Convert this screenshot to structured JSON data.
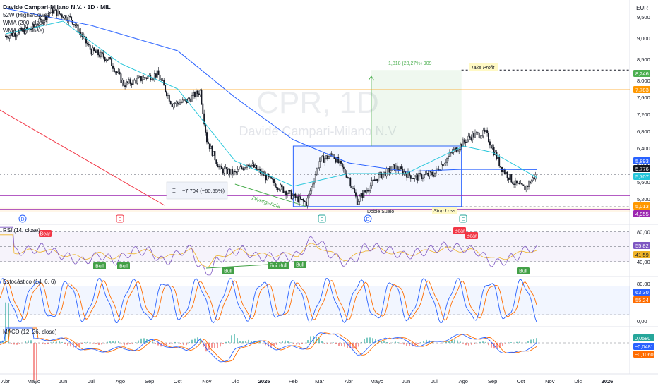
{
  "header": {
    "title": "Davide Campari-Milano N.V. · 1D · MIL",
    "indicator_1": "52W (Highs/Lows)",
    "indicator_2": "WMA (200, close)",
    "indicator_3": "WMA (50, close)"
  },
  "currency": "EUR",
  "watermark": {
    "ticker": "CPR, 1D",
    "name": "Davide Campari-Milano N.V"
  },
  "colors": {
    "up": "#131722",
    "down": "#131722",
    "wma200": "#2962ff",
    "wma50": "#26c6da",
    "rsi": "#7e57c2",
    "rsi_signal": "#f0b429",
    "stoch_k": "#2962ff",
    "stoch_d": "#ff6d00",
    "macd": "#2962ff",
    "macd_signal": "#ff6d00",
    "hist_up": "#26a69a",
    "hist_down": "#ef5350",
    "target": "#4caf50",
    "stop": "#ff9800",
    "support": "#9c27b0",
    "bear": "#f23645",
    "bull": "#43a047"
  },
  "annotations": {
    "measure": "−7,704 (−60,55%)",
    "divergencia": "Divergencia",
    "doble_suelo": "Doble Suelo",
    "stop_loss": "Stop Loss",
    "take_profit": "Take Profit",
    "target_move": "1,818 (28,27%) 909"
  },
  "events": [
    {
      "label": "D",
      "color": "#2962ff"
    },
    {
      "label": "E",
      "color": "#f23645"
    },
    {
      "label": "E",
      "color": "#26a69a"
    },
    {
      "label": "D",
      "color": "#2962ff"
    },
    {
      "label": "E",
      "color": "#26a69a"
    }
  ],
  "price_axis": {
    "ticks": [
      "9,500",
      "9,000",
      "8,500",
      "8,000",
      "7,600",
      "7,200",
      "6,800",
      "6,400",
      "6,000",
      "5,600",
      "5,200"
    ],
    "labels": [
      {
        "text": "8,246",
        "color": "#4caf50"
      },
      {
        "text": "7,783",
        "color": "#ff9800"
      },
      {
        "text": "5,893",
        "color": "#2962ff"
      },
      {
        "text": "5,776",
        "color": "#131722"
      },
      {
        "text": "5,707",
        "color": "#26c6da"
      },
      {
        "text": "5,013",
        "color": "#ff9800"
      },
      {
        "text": "4,955",
        "color": "#9c27b0"
      }
    ]
  },
  "rsi": {
    "title": "RSI (14, close)",
    "ticks": [
      "80,00",
      "40,00"
    ],
    "value_labels": [
      {
        "text": "55,82",
        "color": "#7e57c2"
      },
      {
        "text": "41,59",
        "color": "#f0b429"
      }
    ],
    "bull_tag": "Bull",
    "bear_tag": "Bear"
  },
  "stoch": {
    "title": "Estocástico (14, 6, 6)",
    "ticks": [
      "80,00",
      "0,00"
    ],
    "value_labels": [
      {
        "text": "63,30",
        "color": "#2962ff"
      },
      {
        "text": "55,24",
        "color": "#ff6d00"
      }
    ]
  },
  "macd": {
    "title": "MACD (12, 26, close)",
    "value_labels": [
      {
        "text": "0,0580",
        "color": "#26a69a"
      },
      {
        "text": "−0,0481",
        "color": "#2962ff"
      },
      {
        "text": "−0,1060",
        "color": "#ff6d00"
      }
    ]
  },
  "time_axis": [
    "Abr",
    "Mayo",
    "Jun",
    "Jul",
    "Ago",
    "Sep",
    "Oct",
    "Nov",
    "Dic",
    "2025",
    "Feb",
    "Mar",
    "Abr",
    "Mayo",
    "Jun",
    "Jul",
    "Ago",
    "Sep",
    "Oct",
    "Nov",
    "Dic",
    "2026"
  ],
  "chart_data": [
    {
      "type": "candlestick",
      "title": "Davide Campari-Milano N.V. · 1D · MIL",
      "x_range": [
        "2024-04",
        "2026-01"
      ],
      "ylim": [
        4.6,
        9.9
      ],
      "key_levels": {
        "take_profit": 8.246,
        "resistance_52w": 7.783,
        "wma200": 5.893,
        "last_close": 5.776,
        "wma50": 5.707,
        "stop_loss": 5.013,
        "low_52w": 4.955
      },
      "close_path": [
        {
          "x": "2024-04-01",
          "y": 9.05
        },
        {
          "x": "2024-05-01",
          "y": 9.25
        },
        {
          "x": "2024-05-20",
          "y": 9.65
        },
        {
          "x": "2024-06-10",
          "y": 9.45
        },
        {
          "x": "2024-07-01",
          "y": 8.7
        },
        {
          "x": "2024-07-20",
          "y": 8.5
        },
        {
          "x": "2024-08-05",
          "y": 7.9
        },
        {
          "x": "2024-08-25",
          "y": 8.05
        },
        {
          "x": "2024-09-10",
          "y": 8.15
        },
        {
          "x": "2024-09-25",
          "y": 7.45
        },
        {
          "x": "2024-10-10",
          "y": 7.5
        },
        {
          "x": "2024-10-25",
          "y": 7.75
        },
        {
          "x": "2024-11-01",
          "y": 6.6
        },
        {
          "x": "2024-11-15",
          "y": 5.9
        },
        {
          "x": "2024-12-01",
          "y": 5.8
        },
        {
          "x": "2024-12-15",
          "y": 6.05
        },
        {
          "x": "2025-01-10",
          "y": 5.6
        },
        {
          "x": "2025-02-01",
          "y": 5.25
        },
        {
          "x": "2025-02-15",
          "y": 5.1
        },
        {
          "x": "2025-03-01",
          "y": 6.1
        },
        {
          "x": "2025-03-15",
          "y": 6.25
        },
        {
          "x": "2025-04-01",
          "y": 5.7
        },
        {
          "x": "2025-04-10",
          "y": 5.15
        },
        {
          "x": "2025-05-01",
          "y": 5.7
        },
        {
          "x": "2025-05-20",
          "y": 5.95
        },
        {
          "x": "2025-06-10",
          "y": 5.7
        },
        {
          "x": "2025-07-01",
          "y": 5.8
        },
        {
          "x": "2025-07-20",
          "y": 6.3
        },
        {
          "x": "2025-08-10",
          "y": 6.7
        },
        {
          "x": "2025-08-25",
          "y": 6.75
        },
        {
          "x": "2025-09-10",
          "y": 5.95
        },
        {
          "x": "2025-09-25",
          "y": 5.55
        },
        {
          "x": "2025-10-05",
          "y": 5.45
        },
        {
          "x": "2025-10-18",
          "y": 5.776
        }
      ],
      "wma200_path": [
        {
          "x": "2024-04-01",
          "y": 9.7
        },
        {
          "x": "2024-07-01",
          "y": 9.3
        },
        {
          "x": "2024-10-01",
          "y": 8.7
        },
        {
          "x": "2024-12-01",
          "y": 7.6
        },
        {
          "x": "2025-02-01",
          "y": 6.6
        },
        {
          "x": "2025-04-01",
          "y": 6.05
        },
        {
          "x": "2025-06-01",
          "y": 5.85
        },
        {
          "x": "2025-08-01",
          "y": 5.9
        },
        {
          "x": "2025-10-18",
          "y": 5.893
        }
      ],
      "wma50_path": [
        {
          "x": "2024-04-01",
          "y": 9.1
        },
        {
          "x": "2024-06-01",
          "y": 9.4
        },
        {
          "x": "2024-08-01",
          "y": 8.4
        },
        {
          "x": "2024-10-01",
          "y": 7.8
        },
        {
          "x": "2024-12-01",
          "y": 6.1
        },
        {
          "x": "2025-02-01",
          "y": 5.5
        },
        {
          "x": "2025-04-01",
          "y": 5.8
        },
        {
          "x": "2025-06-01",
          "y": 5.8
        },
        {
          "x": "2025-08-01",
          "y": 6.45
        },
        {
          "x": "2025-09-01",
          "y": 6.3
        },
        {
          "x": "2025-10-18",
          "y": 5.707
        }
      ]
    },
    {
      "type": "line",
      "title": "RSI (14, close)",
      "ylim": [
        20,
        90
      ],
      "bands": [
        80,
        40
      ],
      "last": {
        "rsi": 55.82,
        "signal": 41.59
      }
    },
    {
      "type": "line",
      "title": "Estocástico (14, 6, 6)",
      "ylim": [
        -5,
        100
      ],
      "bands": [
        80,
        20
      ],
      "last": {
        "k": 63.3,
        "d": 55.24
      }
    },
    {
      "type": "line",
      "title": "MACD (12, 26, close)",
      "last": {
        "histogram": 0.058,
        "macd": -0.0481,
        "signal": -0.106
      }
    }
  ]
}
